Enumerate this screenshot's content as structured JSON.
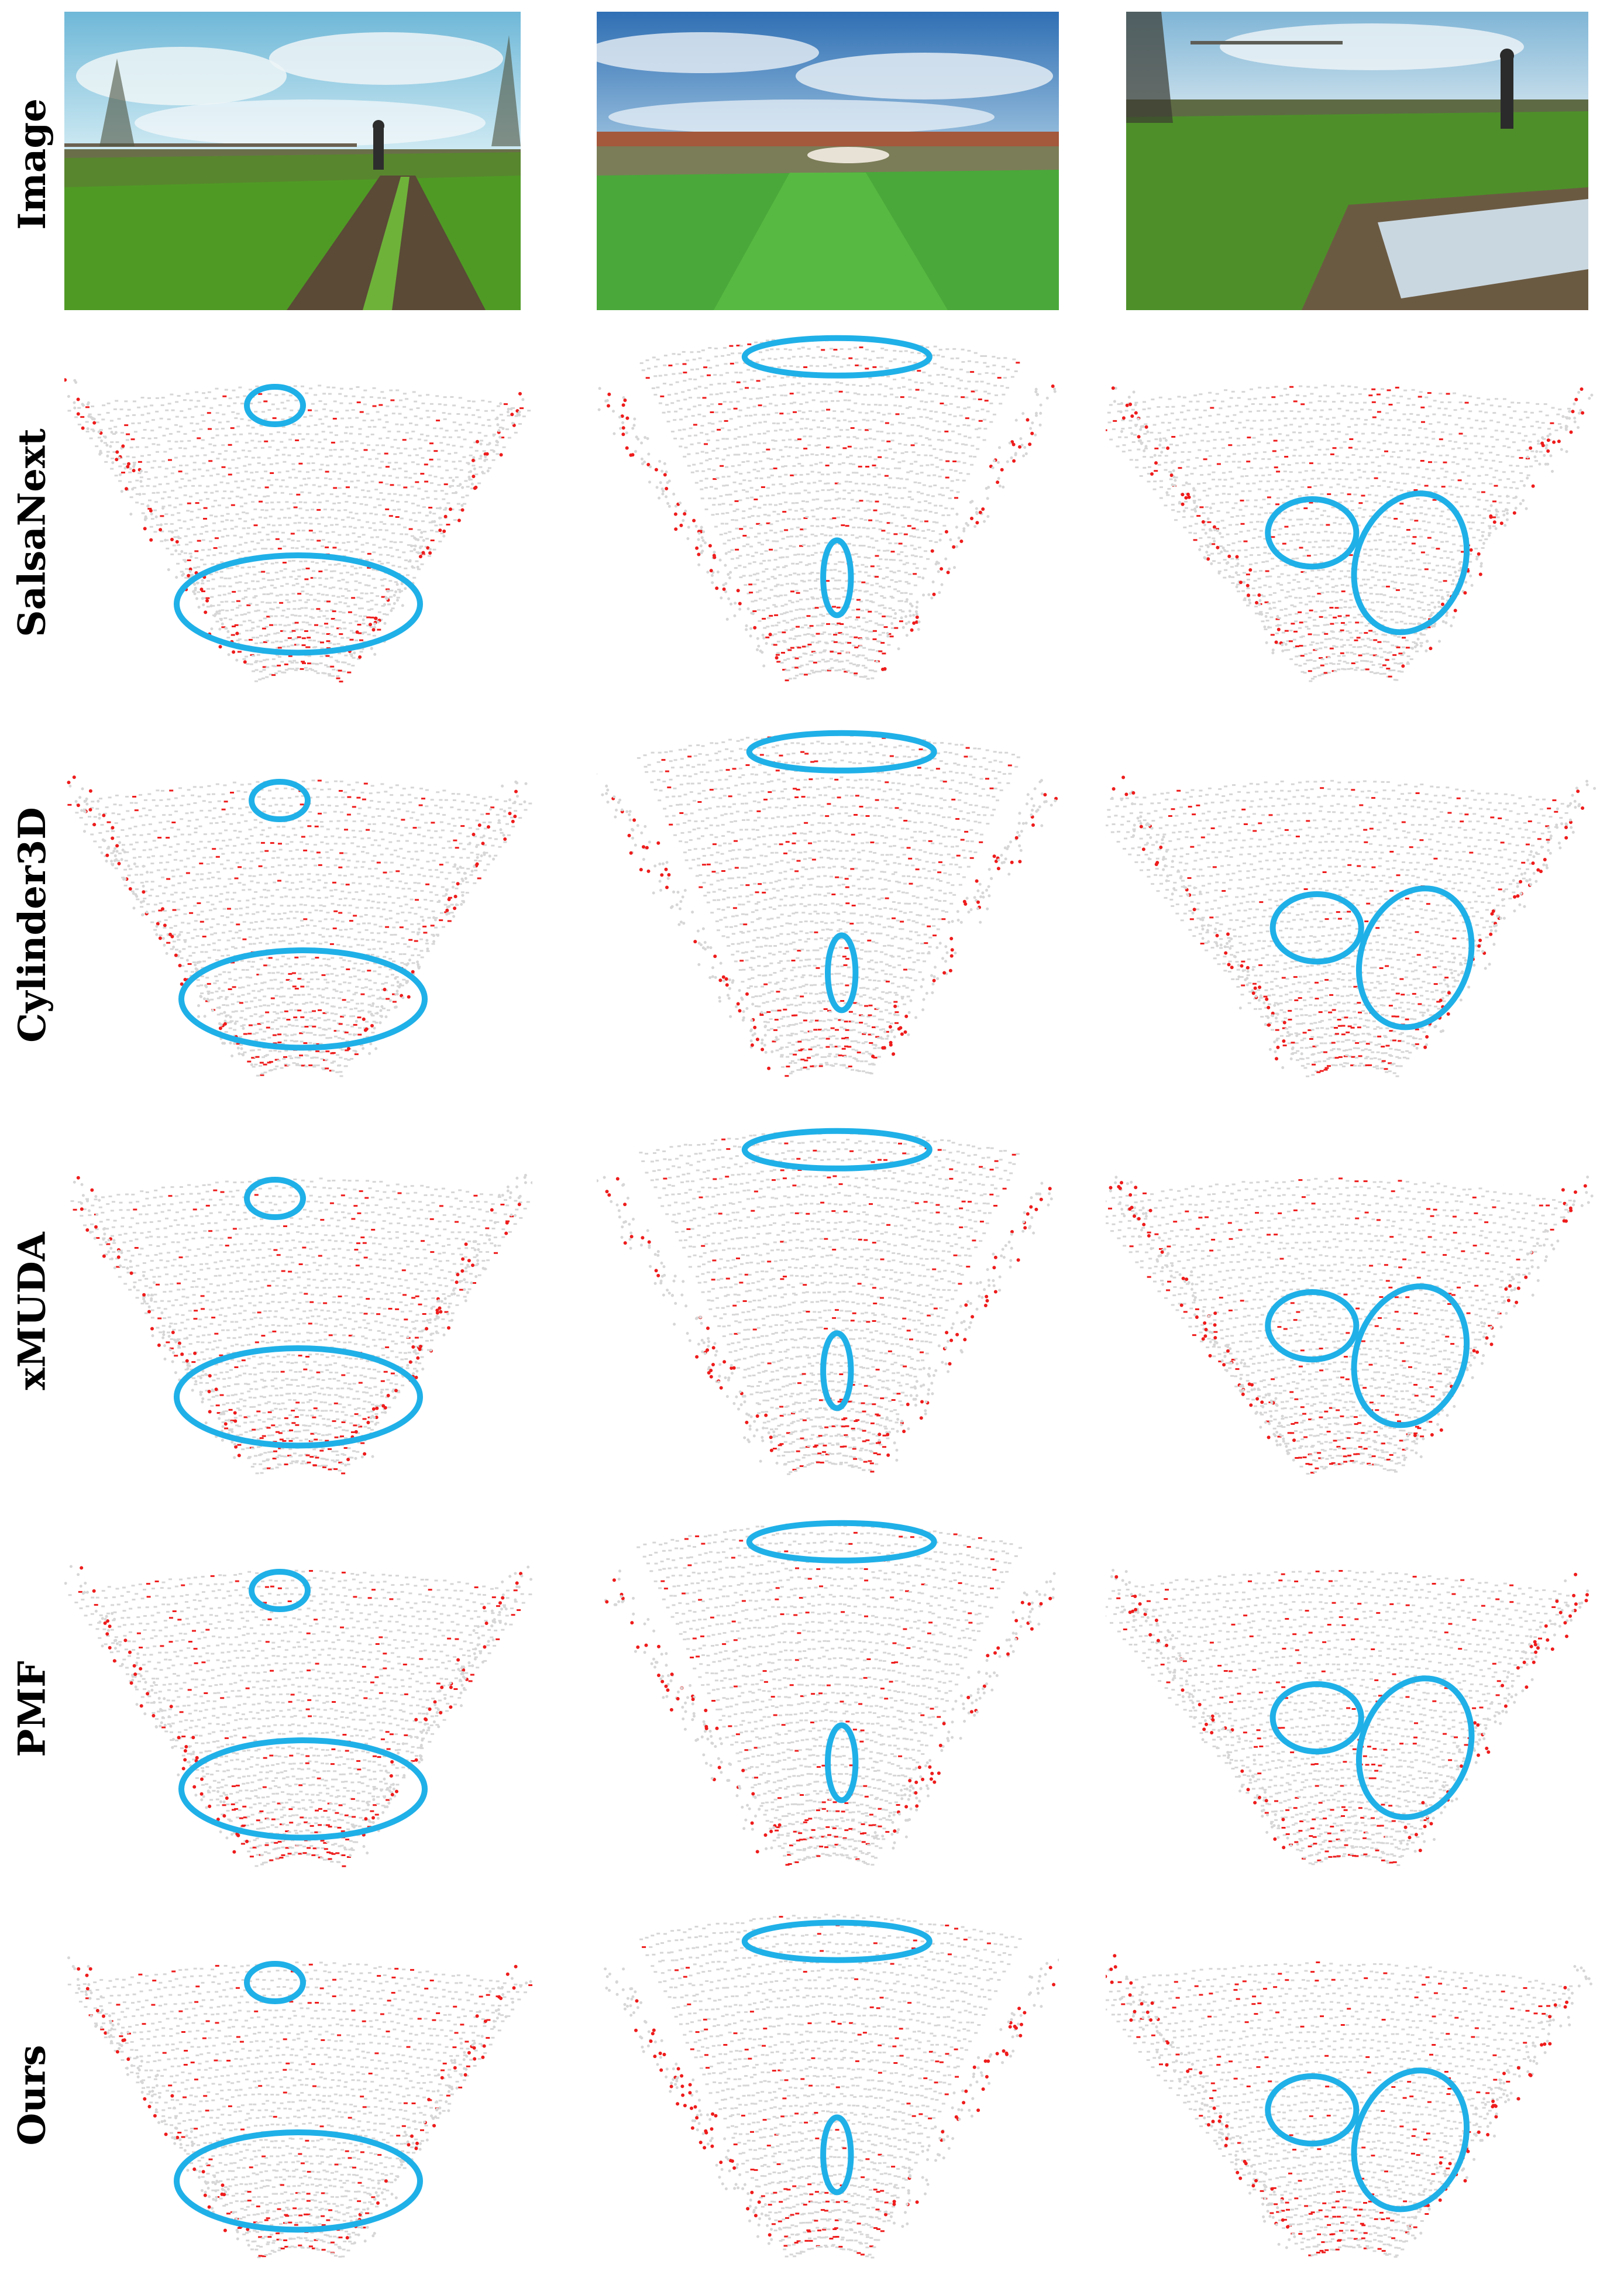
{
  "rows": [
    {
      "label": "Image"
    },
    {
      "label": "SalsaNext"
    },
    {
      "label": "Cylinder3D"
    },
    {
      "label": "xMUDA"
    },
    {
      "label": "PMF"
    },
    {
      "label": "Ours"
    }
  ],
  "colors": {
    "predicted_points": "#ee1c1c",
    "other_points": "#d6d6d6",
    "highlight_ellipse": "#1fb0e8",
    "background": "#ffffff"
  }
}
